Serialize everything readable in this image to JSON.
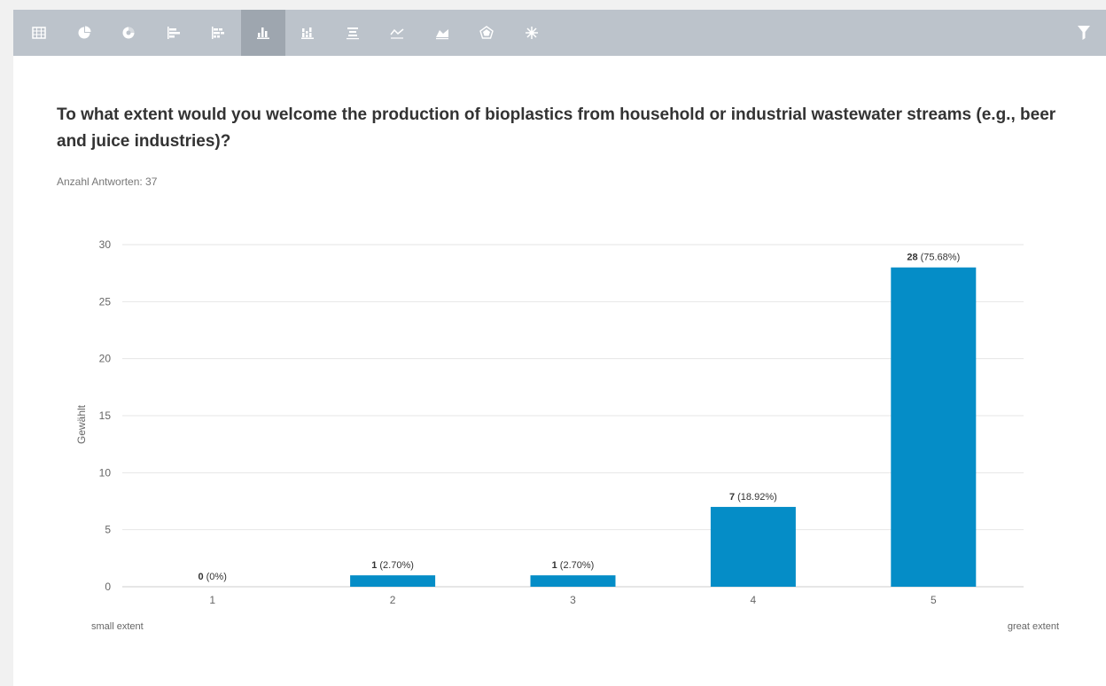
{
  "toolbar": {
    "buttons": [
      {
        "icon": "table-icon"
      },
      {
        "icon": "pie-chart-icon"
      },
      {
        "icon": "donut-chart-icon"
      },
      {
        "icon": "horizontal-bar-icon"
      },
      {
        "icon": "stacked-horizontal-bar-icon"
      },
      {
        "icon": "vertical-bar-icon",
        "active": true
      },
      {
        "icon": "stacked-vertical-bar-icon"
      },
      {
        "icon": "centered-bar-icon"
      },
      {
        "icon": "line-chart-icon"
      },
      {
        "icon": "area-chart-icon"
      },
      {
        "icon": "radar-chart-icon"
      },
      {
        "icon": "star-chart-icon"
      }
    ],
    "filter_icon": "filter-icon"
  },
  "question": {
    "title": "To what extent would you welcome the production of bioplastics from household or industrial wastewater streams (e.g., beer and juice industries)?",
    "responses_label": "Anzahl Antworten: 37"
  },
  "colors": {
    "toolbar_bg": "#bcc3cb",
    "toolbar_active": "#9ea6af",
    "bar": "#058dc7",
    "grid": "#e6e6e6"
  },
  "chart_data": {
    "type": "bar",
    "categories": [
      "1",
      "2",
      "3",
      "4",
      "5"
    ],
    "values": [
      0,
      1,
      1,
      7,
      28
    ],
    "value_labels": [
      "0",
      "1",
      "1",
      "7",
      "28"
    ],
    "percent_labels": [
      "(0%)",
      "(2.70%)",
      "(2.70%)",
      "(18.92%)",
      "(75.68%)"
    ],
    "ylabel": "Gewählt",
    "ylim": [
      0,
      30
    ],
    "yticks": [
      "0",
      "5",
      "10",
      "15",
      "20",
      "25",
      "30"
    ],
    "scale_min_label": "small extent",
    "scale_max_label": "great extent",
    "grid": true
  }
}
